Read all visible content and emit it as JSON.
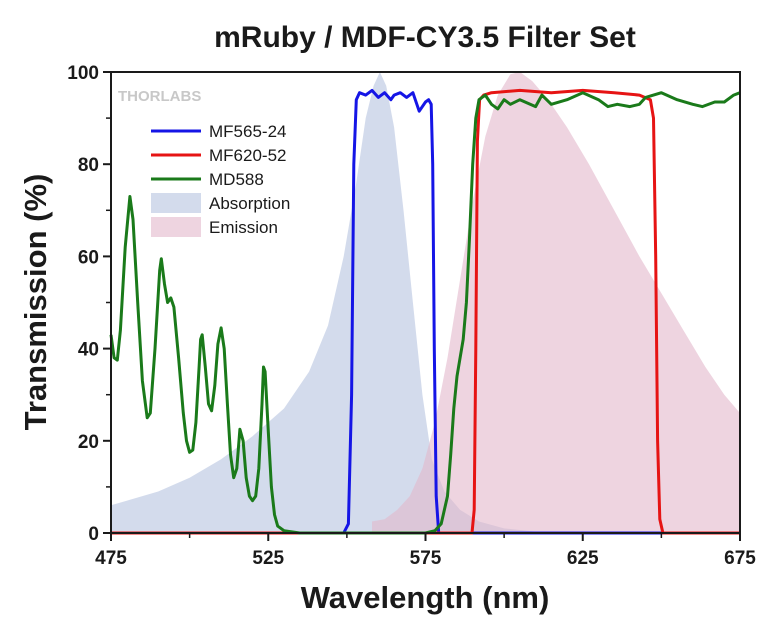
{
  "chart_data": {
    "type": "line",
    "title": "mRuby / MDF-CY3.5 Filter Set",
    "xlabel": "Wavelength (nm)",
    "ylabel": "Transmission (%)",
    "xlim": [
      475,
      675
    ],
    "ylim": [
      0,
      100
    ],
    "xticks": [
      "475",
      "525",
      "575",
      "625",
      "675"
    ],
    "yticks": [
      "0",
      "20",
      "40",
      "60",
      "80",
      "100"
    ],
    "xtick_values": [
      475,
      525,
      575,
      625,
      675
    ],
    "ytick_values": [
      0,
      20,
      40,
      60,
      80,
      100
    ],
    "watermark": "THORLABS",
    "legend_position": "upper-left",
    "series": [
      {
        "name": "MF565-24",
        "kind": "line",
        "color": "#1515e6",
        "points": [
          [
            475,
            0
          ],
          [
            549,
            0
          ],
          [
            550.5,
            2
          ],
          [
            551.5,
            30
          ],
          [
            552.2,
            80
          ],
          [
            553,
            94
          ],
          [
            554,
            95.5
          ],
          [
            556,
            95
          ],
          [
            558,
            96
          ],
          [
            560,
            94.5
          ],
          [
            562,
            95.5
          ],
          [
            564,
            94
          ],
          [
            565,
            95
          ],
          [
            567,
            95.5
          ],
          [
            569,
            94.5
          ],
          [
            571,
            95.5
          ],
          [
            573,
            91.5
          ],
          [
            575,
            93.5
          ],
          [
            576,
            94
          ],
          [
            576.8,
            93
          ],
          [
            577.3,
            80
          ],
          [
            577.8,
            40
          ],
          [
            578.4,
            8
          ],
          [
            579.2,
            0
          ],
          [
            675,
            0
          ]
        ]
      },
      {
        "name": "MF620-52",
        "kind": "line",
        "color": "#e61414",
        "points": [
          [
            475,
            0
          ],
          [
            589.8,
            0
          ],
          [
            590.5,
            5
          ],
          [
            591,
            40
          ],
          [
            591.5,
            85
          ],
          [
            592.2,
            94
          ],
          [
            593.5,
            95
          ],
          [
            596,
            95.5
          ],
          [
            605,
            96
          ],
          [
            615,
            95.5
          ],
          [
            625,
            96
          ],
          [
            635,
            95.5
          ],
          [
            643,
            95
          ],
          [
            646.5,
            94
          ],
          [
            647.5,
            90
          ],
          [
            648.2,
            60
          ],
          [
            648.8,
            20
          ],
          [
            649.5,
            3
          ],
          [
            650.5,
            0
          ],
          [
            675,
            0
          ]
        ]
      },
      {
        "name": "MD588",
        "kind": "line",
        "color": "#1a7a1a",
        "points": [
          [
            475,
            43
          ],
          [
            476,
            38
          ],
          [
            477,
            37.5
          ],
          [
            478,
            44
          ],
          [
            479.5,
            62
          ],
          [
            481,
            73
          ],
          [
            482,
            68
          ],
          [
            483.5,
            50
          ],
          [
            485,
            33
          ],
          [
            486.5,
            25
          ],
          [
            487.5,
            26
          ],
          [
            489,
            40
          ],
          [
            490.5,
            57
          ],
          [
            491,
            59.5
          ],
          [
            492,
            54
          ],
          [
            493,
            50
          ],
          [
            494,
            51
          ],
          [
            495,
            49
          ],
          [
            496.5,
            38
          ],
          [
            498,
            26
          ],
          [
            499,
            20
          ],
          [
            500,
            17.5
          ],
          [
            501,
            18
          ],
          [
            502,
            24
          ],
          [
            503,
            36
          ],
          [
            503.5,
            42
          ],
          [
            504,
            43
          ],
          [
            505,
            36
          ],
          [
            506,
            28
          ],
          [
            507,
            26.5
          ],
          [
            508,
            32
          ],
          [
            509,
            41
          ],
          [
            510,
            44.5
          ],
          [
            511,
            40
          ],
          [
            512,
            28
          ],
          [
            513,
            17
          ],
          [
            514,
            12
          ],
          [
            515,
            14
          ],
          [
            516,
            22.5
          ],
          [
            517,
            20
          ],
          [
            518,
            12
          ],
          [
            519,
            8
          ],
          [
            520,
            7
          ],
          [
            521,
            8
          ],
          [
            522,
            14
          ],
          [
            523,
            28
          ],
          [
            523.5,
            36
          ],
          [
            524,
            35
          ],
          [
            525,
            22
          ],
          [
            526,
            10
          ],
          [
            527,
            4
          ],
          [
            528,
            1.5
          ],
          [
            530,
            0.5
          ],
          [
            535,
            0
          ],
          [
            575,
            0
          ],
          [
            578,
            0.5
          ],
          [
            580,
            2
          ],
          [
            582,
            8
          ],
          [
            583,
            17
          ],
          [
            584,
            27
          ],
          [
            585,
            34
          ],
          [
            586,
            38
          ],
          [
            587,
            42
          ],
          [
            588,
            50
          ],
          [
            589,
            64
          ],
          [
            590,
            80
          ],
          [
            591,
            90
          ],
          [
            592,
            94
          ],
          [
            594,
            95
          ],
          [
            596,
            93
          ],
          [
            598,
            92
          ],
          [
            600,
            94
          ],
          [
            602,
            93
          ],
          [
            605,
            94
          ],
          [
            610,
            92.5
          ],
          [
            612,
            95
          ],
          [
            615,
            93
          ],
          [
            620,
            94
          ],
          [
            625,
            95.5
          ],
          [
            630,
            94
          ],
          [
            633,
            92.5
          ],
          [
            636,
            93
          ],
          [
            640,
            92.5
          ],
          [
            643,
            93
          ],
          [
            645,
            94.5
          ],
          [
            650,
            95.5
          ],
          [
            655,
            94
          ],
          [
            660,
            93
          ],
          [
            663,
            92.5
          ],
          [
            667,
            93.5
          ],
          [
            670,
            93.5
          ],
          [
            673,
            95
          ],
          [
            675,
            95.5
          ]
        ]
      },
      {
        "name": "Absorption",
        "kind": "area",
        "color": "#b6c3e0",
        "opacity": 0.6,
        "points": [
          [
            475,
            6
          ],
          [
            490,
            9
          ],
          [
            500,
            12
          ],
          [
            510,
            16
          ],
          [
            520,
            21
          ],
          [
            530,
            27
          ],
          [
            538,
            35
          ],
          [
            544,
            45
          ],
          [
            549,
            60
          ],
          [
            553,
            76
          ],
          [
            556,
            90
          ],
          [
            558.5,
            97
          ],
          [
            560.5,
            100
          ],
          [
            562.5,
            97
          ],
          [
            565,
            88
          ],
          [
            568,
            70
          ],
          [
            571,
            50
          ],
          [
            574,
            30
          ],
          [
            577,
            16
          ],
          [
            581,
            9
          ],
          [
            586,
            5
          ],
          [
            592,
            2.5
          ],
          [
            600,
            1
          ],
          [
            610,
            0.3
          ],
          [
            620,
            0
          ]
        ]
      },
      {
        "name": "Emission",
        "kind": "area",
        "color": "#e2b8cc",
        "opacity": 0.6,
        "points": [
          [
            558,
            2.5
          ],
          [
            562,
            3
          ],
          [
            566,
            5
          ],
          [
            570,
            8
          ],
          [
            574,
            14
          ],
          [
            578,
            24
          ],
          [
            582,
            38
          ],
          [
            586,
            55
          ],
          [
            590,
            72
          ],
          [
            594,
            86
          ],
          [
            598,
            95
          ],
          [
            602,
            99.5
          ],
          [
            605,
            100
          ],
          [
            609,
            98
          ],
          [
            614,
            94
          ],
          [
            620,
            88
          ],
          [
            627,
            80
          ],
          [
            635,
            70
          ],
          [
            643,
            60
          ],
          [
            650,
            52
          ],
          [
            657,
            44
          ],
          [
            664,
            36
          ],
          [
            670,
            30
          ],
          [
            675,
            26
          ]
        ]
      }
    ]
  }
}
